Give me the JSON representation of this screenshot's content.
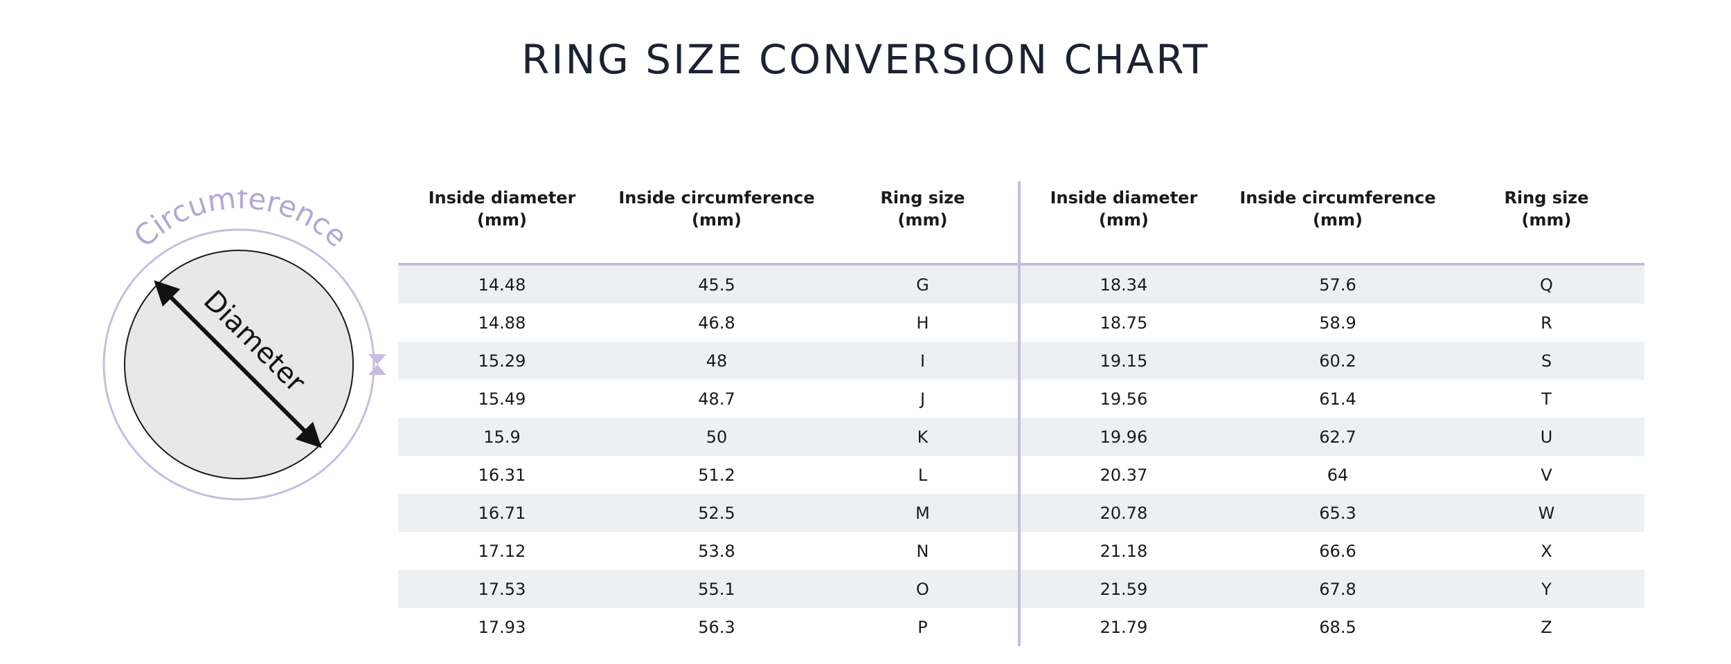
{
  "title": "RING SIZE CONVERSION CHART",
  "diagram": {
    "circumference_label": "Circumference",
    "diameter_label": "Diameter",
    "colors": {
      "outer_ring": "#c7bde0",
      "inner_fill": "#e8e8e8",
      "arrow": "#111111"
    }
  },
  "table": {
    "headers": [
      {
        "line1": "Inside diameter",
        "line2": "(mm)"
      },
      {
        "line1": "Inside circumference",
        "line2": "(mm)"
      },
      {
        "line1": "Ring size",
        "line2": "(mm)"
      },
      {
        "line1": "Inside diameter",
        "line2": "(mm)"
      },
      {
        "line1": "Inside circumference",
        "line2": "(mm)"
      },
      {
        "line1": "Ring size",
        "line2": "(mm)"
      }
    ],
    "rows": [
      [
        "14.48",
        "45.5",
        "G",
        "18.34",
        "57.6",
        "Q"
      ],
      [
        "14.88",
        "46.8",
        "H",
        "18.75",
        "58.9",
        "R"
      ],
      [
        "15.29",
        "48",
        "I",
        "19.15",
        "60.2",
        "S"
      ],
      [
        "15.49",
        "48.7",
        "J",
        "19.56",
        "61.4",
        "T"
      ],
      [
        "15.9",
        "50",
        "K",
        "19.96",
        "62.7",
        "U"
      ],
      [
        "16.31",
        "51.2",
        "L",
        "20.37",
        "64",
        "V"
      ],
      [
        "16.71",
        "52.5",
        "M",
        "20.78",
        "65.3",
        "W"
      ],
      [
        "17.12",
        "53.8",
        "N",
        "21.18",
        "66.6",
        "X"
      ],
      [
        "17.53",
        "55.1",
        "O",
        "21.59",
        "67.8",
        "Y"
      ],
      [
        "17.93",
        "56.3",
        "P",
        "21.79",
        "68.5",
        "Z"
      ]
    ]
  },
  "colors": {
    "accent": "#c7bde0",
    "row_shade": "#edf0f3",
    "title": "#1d2233"
  }
}
